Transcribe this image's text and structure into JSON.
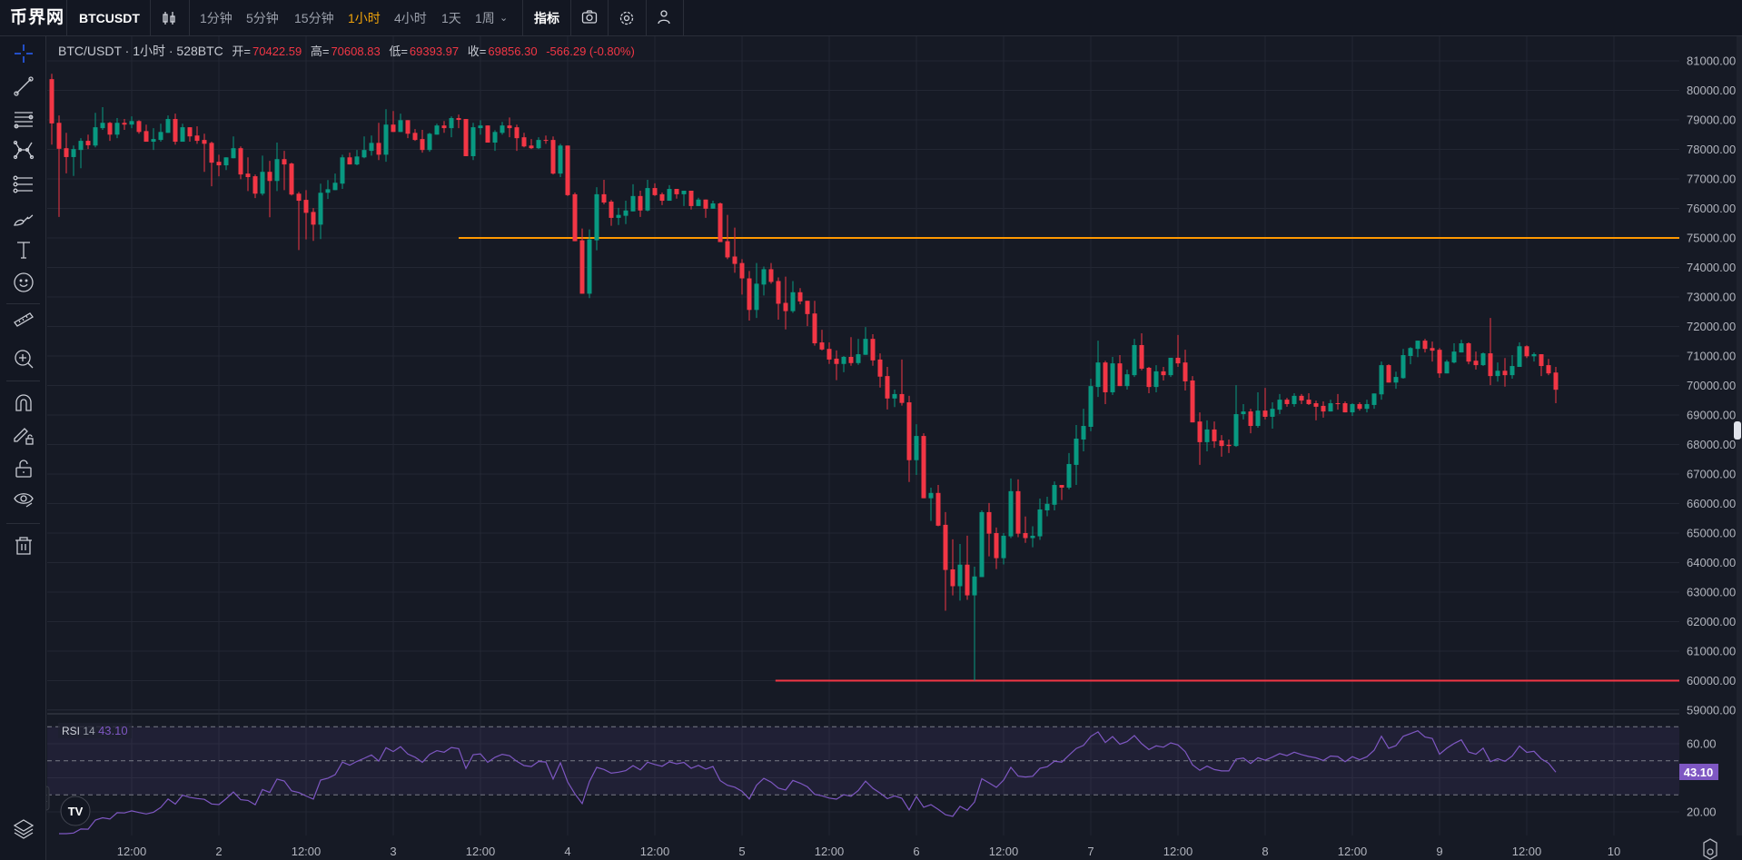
{
  "topbar": {
    "logo": "币界网",
    "symbol": "BTCUSDT",
    "intervals": [
      "1分钟",
      "5分钟",
      "15分钟",
      "1小时",
      "4小时",
      "1天",
      "1周"
    ],
    "active_interval": "1小时",
    "indicators_label": "指标"
  },
  "legend": {
    "title": "BTC/USDT · 1小时 · 528BTC",
    "open_label": "开=",
    "open": "70422.59",
    "high_label": "高=",
    "high": "70608.83",
    "low_label": "低=",
    "low": "69393.97",
    "close_label": "收=",
    "close": "69856.30",
    "change": "-566.29 (-0.80%)"
  },
  "rsi_legend": {
    "name": "RSI",
    "period": "14",
    "value": "43.10"
  },
  "colors": {
    "up": "#089981",
    "down": "#f23645",
    "orange_line": "#ff9800",
    "red_line": "#f23645",
    "rsi": "#7e57c2",
    "accent": "#f0a30a"
  },
  "chart_data": {
    "type": "candlestick",
    "symbol": "BTC/USDT",
    "interval": "1h",
    "ylim": [
      59000,
      81000
    ],
    "y_ticks": [
      81000,
      80000,
      79000,
      78000,
      77000,
      76000,
      75000,
      74000,
      73000,
      72000,
      71000,
      70000,
      69000,
      68000,
      67000,
      66000,
      65000,
      64000,
      63000,
      62000,
      61000,
      60000,
      59000
    ],
    "x_ticks": [
      {
        "label": "12:00",
        "hour": 12
      },
      {
        "label": "2",
        "hour": 24
      },
      {
        "label": "12:00",
        "hour": 36
      },
      {
        "label": "3",
        "hour": 48
      },
      {
        "label": "12:00",
        "hour": 60
      },
      {
        "label": "4",
        "hour": 72
      },
      {
        "label": "12:00",
        "hour": 84
      },
      {
        "label": "5",
        "hour": 96
      },
      {
        "label": "12:00",
        "hour": 108
      },
      {
        "label": "6",
        "hour": 120
      },
      {
        "label": "12:00",
        "hour": 132
      },
      {
        "label": "7",
        "hour": 144
      },
      {
        "label": "12:00",
        "hour": 156
      },
      {
        "label": "8",
        "hour": 168
      },
      {
        "label": "12:00",
        "hour": 180
      },
      {
        "label": "9",
        "hour": 192
      },
      {
        "label": "12:00",
        "hour": 204
      },
      {
        "label": "10",
        "hour": 216
      }
    ],
    "first_candle_hour": 1,
    "horizontal_lines": [
      {
        "price": 75000,
        "from_hour": 57,
        "color": "#ff9800"
      },
      {
        "price": 60000,
        "from_hour": 100.6,
        "color": "#f23645"
      }
    ],
    "candles_ohlc": [
      [
        80380,
        80560,
        78160,
        78880
      ],
      [
        78900,
        79150,
        75710,
        78020
      ],
      [
        78040,
        78560,
        77190,
        77740
      ],
      [
        77740,
        78130,
        77100,
        78010
      ],
      [
        77980,
        78380,
        77360,
        78290
      ],
      [
        78290,
        78500,
        78010,
        78140
      ],
      [
        78130,
        79240,
        78070,
        78750
      ],
      [
        78720,
        79430,
        78660,
        78900
      ],
      [
        78900,
        78930,
        78290,
        78500
      ],
      [
        78500,
        79060,
        78380,
        78900
      ],
      [
        78900,
        79030,
        78660,
        78840
      ],
      [
        78840,
        79120,
        78720,
        78960
      ],
      [
        78960,
        78990,
        78530,
        78590
      ],
      [
        78620,
        78840,
        78260,
        78260
      ],
      [
        78260,
        78720,
        77980,
        78350
      ],
      [
        78320,
        78870,
        78260,
        78590
      ],
      [
        78560,
        79150,
        78560,
        79030
      ],
      [
        79030,
        79210,
        78160,
        78260
      ],
      [
        78260,
        78870,
        78260,
        78750
      ],
      [
        78750,
        78750,
        78260,
        78440
      ],
      [
        78470,
        78780,
        78190,
        78290
      ],
      [
        78320,
        78530,
        77240,
        78190
      ],
      [
        78220,
        78260,
        76750,
        77550
      ],
      [
        77580,
        77820,
        77090,
        77460
      ],
      [
        77460,
        77730,
        77300,
        77730
      ],
      [
        77700,
        78440,
        77700,
        78040
      ],
      [
        78040,
        78100,
        76990,
        77150
      ],
      [
        77180,
        77730,
        76590,
        77060
      ],
      [
        77090,
        77150,
        76350,
        76500
      ],
      [
        76500,
        77790,
        76440,
        77240
      ],
      [
        77240,
        77610,
        75700,
        76930
      ],
      [
        76930,
        78230,
        76590,
        77670
      ],
      [
        77670,
        77950,
        76620,
        77490
      ],
      [
        77520,
        77550,
        76440,
        76470
      ],
      [
        76500,
        76560,
        74590,
        76260
      ],
      [
        76290,
        76620,
        74950,
        75850
      ],
      [
        75880,
        76010,
        74900,
        75450
      ],
      [
        75450,
        76840,
        74960,
        76530
      ],
      [
        76530,
        76960,
        76320,
        76650
      ],
      [
        76620,
        77180,
        76620,
        76870
      ],
      [
        76840,
        77820,
        76660,
        77730
      ],
      [
        77730,
        77890,
        77490,
        77490
      ],
      [
        77490,
        77980,
        77460,
        77760
      ],
      [
        77730,
        78440,
        77700,
        77980
      ],
      [
        77950,
        78470,
        77790,
        78220
      ],
      [
        78220,
        78900,
        77640,
        77820
      ],
      [
        77820,
        79360,
        77580,
        78840
      ],
      [
        78840,
        79300,
        78590,
        78590
      ],
      [
        78590,
        79210,
        78590,
        78990
      ],
      [
        78990,
        78990,
        78380,
        78530
      ],
      [
        78560,
        78690,
        78290,
        78320
      ],
      [
        78350,
        78660,
        77890,
        77980
      ],
      [
        77980,
        78560,
        77920,
        78530
      ],
      [
        78500,
        78870,
        78500,
        78810
      ],
      [
        78810,
        78960,
        78560,
        78720
      ],
      [
        78720,
        79120,
        78410,
        79060
      ],
      [
        79060,
        79180,
        78720,
        79000
      ],
      [
        79030,
        79030,
        77770,
        77770
      ],
      [
        77770,
        78900,
        77640,
        78750
      ],
      [
        78720,
        78990,
        78500,
        78810
      ],
      [
        78810,
        78810,
        78230,
        78230
      ],
      [
        78230,
        78650,
        77950,
        78590
      ],
      [
        78560,
        78930,
        78500,
        78810
      ],
      [
        78810,
        79080,
        78410,
        78720
      ],
      [
        78750,
        78840,
        77950,
        78380
      ],
      [
        78410,
        78560,
        78070,
        78100
      ],
      [
        78130,
        78350,
        78010,
        78040
      ],
      [
        78040,
        78410,
        78010,
        78320
      ],
      [
        78320,
        78470,
        78190,
        78290
      ],
      [
        78320,
        78440,
        77150,
        77180
      ],
      [
        77180,
        78190,
        77060,
        78130
      ],
      [
        78130,
        78130,
        76420,
        76450
      ],
      [
        76480,
        76540,
        74890,
        74890
      ],
      [
        74920,
        75320,
        73110,
        73110
      ],
      [
        73110,
        75290,
        72960,
        74950
      ],
      [
        74920,
        76720,
        74580,
        76480
      ],
      [
        76480,
        76970,
        76140,
        76200
      ],
      [
        76230,
        76290,
        75410,
        75680
      ],
      [
        75680,
        76020,
        75440,
        75780
      ],
      [
        75750,
        76260,
        75470,
        75930
      ],
      [
        75900,
        76820,
        75900,
        76420
      ],
      [
        76420,
        76600,
        75710,
        75930
      ],
      [
        75930,
        76970,
        75900,
        76690
      ],
      [
        76690,
        76850,
        76420,
        76450
      ],
      [
        76480,
        76540,
        76110,
        76260
      ],
      [
        76260,
        76790,
        76260,
        76660
      ],
      [
        76660,
        76660,
        76330,
        76480
      ],
      [
        76480,
        76600,
        76080,
        76600
      ],
      [
        76600,
        76600,
        75960,
        76080
      ],
      [
        76080,
        76360,
        76080,
        76300
      ],
      [
        76300,
        76300,
        75680,
        75990
      ],
      [
        75990,
        76260,
        75990,
        76170
      ],
      [
        76170,
        76200,
        74860,
        74860
      ],
      [
        74890,
        75780,
        74280,
        74340
      ],
      [
        74370,
        75350,
        73820,
        74120
      ],
      [
        74150,
        74280,
        73080,
        73630
      ],
      [
        73630,
        73880,
        72200,
        72560
      ],
      [
        72560,
        74150,
        72290,
        73450
      ],
      [
        73420,
        74030,
        73050,
        73940
      ],
      [
        73940,
        74150,
        73450,
        73510
      ],
      [
        73540,
        73660,
        72230,
        72770
      ],
      [
        72800,
        73690,
        71900,
        72520
      ],
      [
        72520,
        73540,
        72460,
        73160
      ],
      [
        73160,
        73300,
        72750,
        72850
      ],
      [
        72870,
        72870,
        72010,
        72420
      ],
      [
        72440,
        72870,
        71350,
        71430
      ],
      [
        71460,
        71890,
        71190,
        71220
      ],
      [
        71240,
        71460,
        70730,
        70880
      ],
      [
        70910,
        71190,
        70180,
        70730
      ],
      [
        70730,
        71000,
        70450,
        70970
      ],
      [
        70970,
        71640,
        70670,
        70760
      ],
      [
        70760,
        71580,
        70700,
        71060
      ],
      [
        71040,
        71980,
        71040,
        71580
      ],
      [
        71580,
        71740,
        70670,
        70850
      ],
      [
        70880,
        71090,
        69930,
        70300
      ],
      [
        70320,
        70630,
        69190,
        69560
      ],
      [
        69560,
        69860,
        69270,
        69710
      ],
      [
        69710,
        70880,
        69320,
        69410
      ],
      [
        69430,
        69650,
        66730,
        67470
      ],
      [
        67470,
        68690,
        66970,
        68290
      ],
      [
        68290,
        68380,
        66180,
        66180
      ],
      [
        66180,
        66540,
        65410,
        66360
      ],
      [
        66360,
        66630,
        65230,
        65250
      ],
      [
        65280,
        65710,
        62370,
        63750
      ],
      [
        63770,
        64790,
        62890,
        63200
      ],
      [
        63200,
        64630,
        62710,
        63930
      ],
      [
        63930,
        64910,
        62740,
        62890
      ],
      [
        62890,
        63860,
        60000,
        63530
      ],
      [
        63510,
        65770,
        63510,
        65710
      ],
      [
        65710,
        66020,
        64210,
        64980
      ],
      [
        65000,
        65190,
        63780,
        64150
      ],
      [
        64150,
        65000,
        63940,
        64910
      ],
      [
        64890,
        66850,
        64830,
        66420
      ],
      [
        66420,
        66820,
        64860,
        64980
      ],
      [
        65000,
        65560,
        64670,
        64830
      ],
      [
        64830,
        65230,
        64520,
        64910
      ],
      [
        64890,
        66170,
        64770,
        65800
      ],
      [
        65770,
        66230,
        65570,
        65990
      ],
      [
        65960,
        66750,
        65770,
        66630
      ],
      [
        66630,
        66630,
        66120,
        66540
      ],
      [
        66540,
        67710,
        66480,
        67340
      ],
      [
        67310,
        68660,
        66630,
        68200
      ],
      [
        68170,
        69210,
        67770,
        68630
      ],
      [
        68600,
        70230,
        68450,
        69980
      ],
      [
        69950,
        71520,
        69610,
        70780
      ],
      [
        70780,
        70840,
        69370,
        69770
      ],
      [
        69770,
        70970,
        69680,
        70750
      ],
      [
        70750,
        71030,
        69980,
        69980
      ],
      [
        69980,
        70540,
        69860,
        70380
      ],
      [
        70350,
        71580,
        70290,
        71370
      ],
      [
        71370,
        71770,
        70510,
        70570
      ],
      [
        70600,
        70630,
        69740,
        69950
      ],
      [
        69950,
        70690,
        69770,
        70480
      ],
      [
        70480,
        70630,
        70170,
        70350
      ],
      [
        70350,
        70940,
        70290,
        70940
      ],
      [
        70940,
        71710,
        70630,
        70750
      ],
      [
        70780,
        71210,
        69830,
        70140
      ],
      [
        70170,
        70320,
        68750,
        68750
      ],
      [
        68780,
        69090,
        67310,
        68080
      ],
      [
        68080,
        68820,
        67770,
        68510
      ],
      [
        68510,
        68780,
        67890,
        68110
      ],
      [
        68140,
        68320,
        67590,
        67950
      ],
      [
        67990,
        68170,
        67710,
        67950
      ],
      [
        67950,
        70010,
        67920,
        69030
      ],
      [
        69030,
        69370,
        68850,
        69120
      ],
      [
        69120,
        69210,
        68380,
        68630
      ],
      [
        68630,
        69770,
        68570,
        69150
      ],
      [
        69150,
        69920,
        68850,
        68940
      ],
      [
        68940,
        69430,
        68540,
        69210
      ],
      [
        69180,
        69710,
        69030,
        69520
      ],
      [
        69520,
        69580,
        69280,
        69370
      ],
      [
        69370,
        69740,
        69280,
        69650
      ],
      [
        69650,
        69710,
        69370,
        69490
      ],
      [
        69520,
        69740,
        69340,
        69370
      ],
      [
        69400,
        69490,
        68820,
        69280
      ],
      [
        69310,
        69460,
        68910,
        69120
      ],
      [
        69120,
        69520,
        69120,
        69400
      ],
      [
        69400,
        69710,
        69180,
        69370
      ],
      [
        69400,
        69460,
        69090,
        69090
      ],
      [
        69090,
        69400,
        68970,
        69370
      ],
      [
        69370,
        69430,
        69150,
        69210
      ],
      [
        69210,
        69520,
        69090,
        69370
      ],
      [
        69340,
        69730,
        69210,
        69730
      ],
      [
        69700,
        70810,
        69520,
        70690
      ],
      [
        70690,
        70720,
        70100,
        70100
      ],
      [
        70100,
        70470,
        69890,
        70290
      ],
      [
        70250,
        71240,
        70230,
        71030
      ],
      [
        71000,
        71300,
        70720,
        71270
      ],
      [
        71240,
        71520,
        70960,
        71520
      ],
      [
        71520,
        71580,
        71120,
        71240
      ],
      [
        71270,
        71490,
        70810,
        71180
      ],
      [
        71210,
        71270,
        70260,
        70410
      ],
      [
        70410,
        70870,
        70410,
        70810
      ],
      [
        70780,
        71430,
        70750,
        71150
      ],
      [
        71120,
        71550,
        71120,
        71430
      ],
      [
        71430,
        71460,
        70720,
        70810
      ],
      [
        70840,
        71150,
        70540,
        70690
      ],
      [
        70690,
        71120,
        70660,
        71090
      ],
      [
        71090,
        72290,
        70010,
        70320
      ],
      [
        70320,
        70780,
        70130,
        70500
      ],
      [
        70500,
        70930,
        69960,
        70350
      ],
      [
        70350,
        71030,
        70230,
        70660
      ],
      [
        70630,
        71460,
        70630,
        71330
      ],
      [
        71330,
        71360,
        70930,
        70990
      ],
      [
        70990,
        71120,
        70810,
        71060
      ],
      [
        71060,
        71060,
        70320,
        70660
      ],
      [
        70690,
        70900,
        70350,
        70410
      ],
      [
        70440,
        70630,
        69400,
        69856.3
      ]
    ],
    "rsi": {
      "period": 14,
      "ylim": [
        10,
        75
      ],
      "y_ticks": [
        60,
        20
      ],
      "bands": [
        70,
        50,
        30
      ],
      "last_value": "43.10"
    }
  }
}
